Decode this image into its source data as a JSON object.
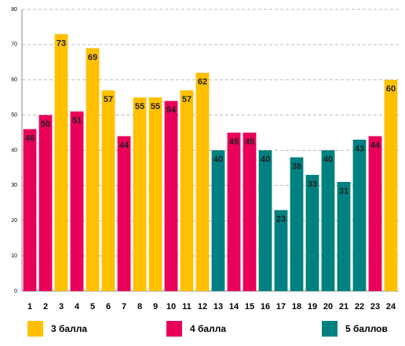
{
  "chart_data": {
    "type": "bar",
    "categories": [
      "1",
      "2",
      "3",
      "4",
      "5",
      "6",
      "7",
      "8",
      "9",
      "10",
      "11",
      "12",
      "13",
      "14",
      "15",
      "16",
      "17",
      "18",
      "19",
      "20",
      "21",
      "22",
      "23",
      "24"
    ],
    "series": [
      {
        "name": "3 балла",
        "color": "#ffc000",
        "values": [
          null,
          null,
          73,
          null,
          69,
          57,
          null,
          55,
          55,
          null,
          57,
          62,
          null,
          null,
          null,
          null,
          null,
          null,
          null,
          null,
          null,
          null,
          null,
          60
        ]
      },
      {
        "name": "4 балла",
        "color": "#e8005a",
        "values": [
          46,
          50,
          null,
          51,
          null,
          null,
          44,
          null,
          null,
          54,
          null,
          null,
          null,
          45,
          45,
          null,
          null,
          null,
          null,
          null,
          null,
          null,
          44,
          null
        ]
      },
      {
        "name": "5 баллов",
        "color": "#008080",
        "values": [
          null,
          null,
          null,
          null,
          null,
          null,
          null,
          null,
          null,
          null,
          null,
          null,
          40,
          null,
          null,
          40,
          23,
          38,
          33,
          40,
          31,
          43,
          null,
          null
        ]
      }
    ],
    "ylim": [
      0,
      80
    ],
    "yticks": [
      0,
      10,
      20,
      30,
      40,
      50,
      60,
      70,
      80
    ],
    "grid": true
  }
}
